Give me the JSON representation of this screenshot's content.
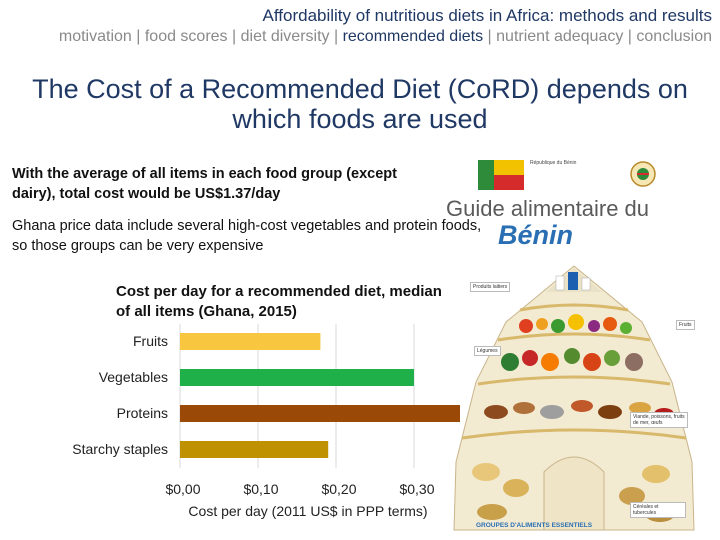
{
  "header": {
    "topic": "Affordability of nutritious diets in Africa: methods and results",
    "nav": [
      {
        "label": "motivation",
        "current": false
      },
      {
        "label": "food scores",
        "current": false
      },
      {
        "label": "diet diversity",
        "current": false
      },
      {
        "label": "recommended diets",
        "current": false
      },
      {
        "label": "nutrient adequacy",
        "current": false
      },
      {
        "label": "conclusion",
        "current": false
      }
    ],
    "current_index": 3
  },
  "slide": {
    "title": "The Cost of a Recommended Diet (CoRD) depends on which foods are used",
    "para1": "With the average of all items in each food group (except dairy), total cost would be US$1.37/day",
    "para2": "Ghana price data include several high-cost vegetables and protein foods, so those groups can be very expensive"
  },
  "guide_image": {
    "title_line1": "Guide alimentaire du",
    "title_line2": "Bénin",
    "ministry": "République du Bénin",
    "caption": "GROUPES D'ALIMENTS ESSENTIELS",
    "tags": [
      "Produits laitiers",
      "Légumes",
      "Fruits",
      "Viande, poissons, fruits de mer, œufs",
      "Céréales et tubercules"
    ],
    "flag_colors": [
      "#2e8b3a",
      "#f2c200",
      "#d62b2b"
    ]
  },
  "chart_data": {
    "type": "bar",
    "orientation": "horizontal",
    "title": "Cost per day for a recommended diet, median of all items (Ghana, 2015)",
    "categories": [
      "Fruits",
      "Vegetables",
      "Proteins",
      "Starchy staples"
    ],
    "values": [
      0.18,
      0.3,
      0.36,
      0.19
    ],
    "colors": [
      "#f9c73f",
      "#1fb04a",
      "#9a4a06",
      "#bf9000"
    ],
    "xlabel": "Cost per day (2011 US$ in PPP terms)",
    "xticks": [
      "$0,00",
      "$0,10",
      "$0,20",
      "$0,30"
    ],
    "xlim": [
      0,
      0.4
    ],
    "grid": true
  }
}
